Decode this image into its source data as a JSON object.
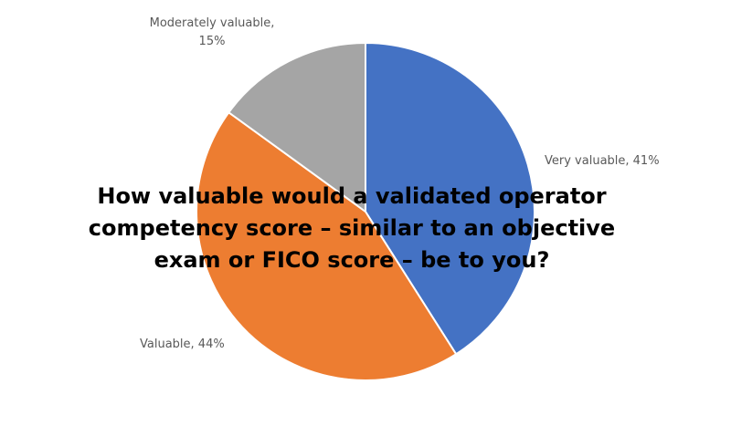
{
  "chart_data": {
    "type": "pie",
    "title": "How valuable would a validated operator competency score – similar to an objective exam or FICO score – be to you?",
    "values": [
      41,
      44,
      15
    ],
    "value_labels": [
      "Very valuable, 41%",
      "Valuable, 44%",
      "Moderately valuable, 15%"
    ],
    "colors": [
      "#4472c4",
      "#ed7d31",
      "#a5a5a5"
    ]
  }
}
